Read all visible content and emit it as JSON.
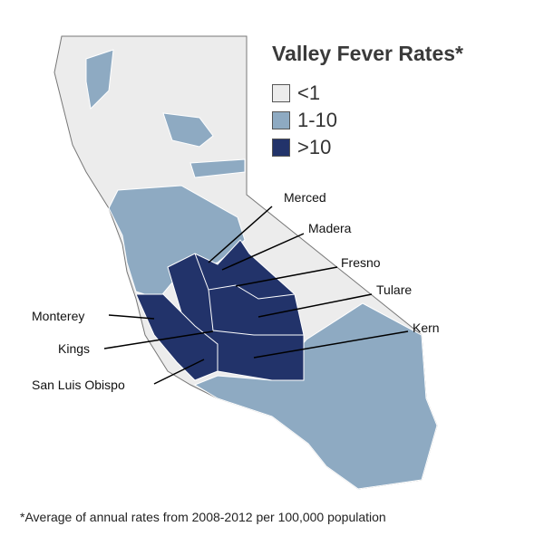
{
  "title": "Valley Fever Rates*",
  "legend": [
    {
      "label": "<1",
      "color": "#ececec"
    },
    {
      "label": "1-10",
      "color": "#8eaac2"
    },
    {
      "label": ">10",
      "color": "#22336a"
    }
  ],
  "counties": {
    "merced": "Merced",
    "madera": "Madera",
    "fresno": "Fresno",
    "tulare": "Tulare",
    "kern": "Kern",
    "monterey": "Monterey",
    "kings": "Kings",
    "slo": "San Luis Obispo"
  },
  "footnote": "*Average of annual rates from 2008-2012 per 100,000 population"
}
